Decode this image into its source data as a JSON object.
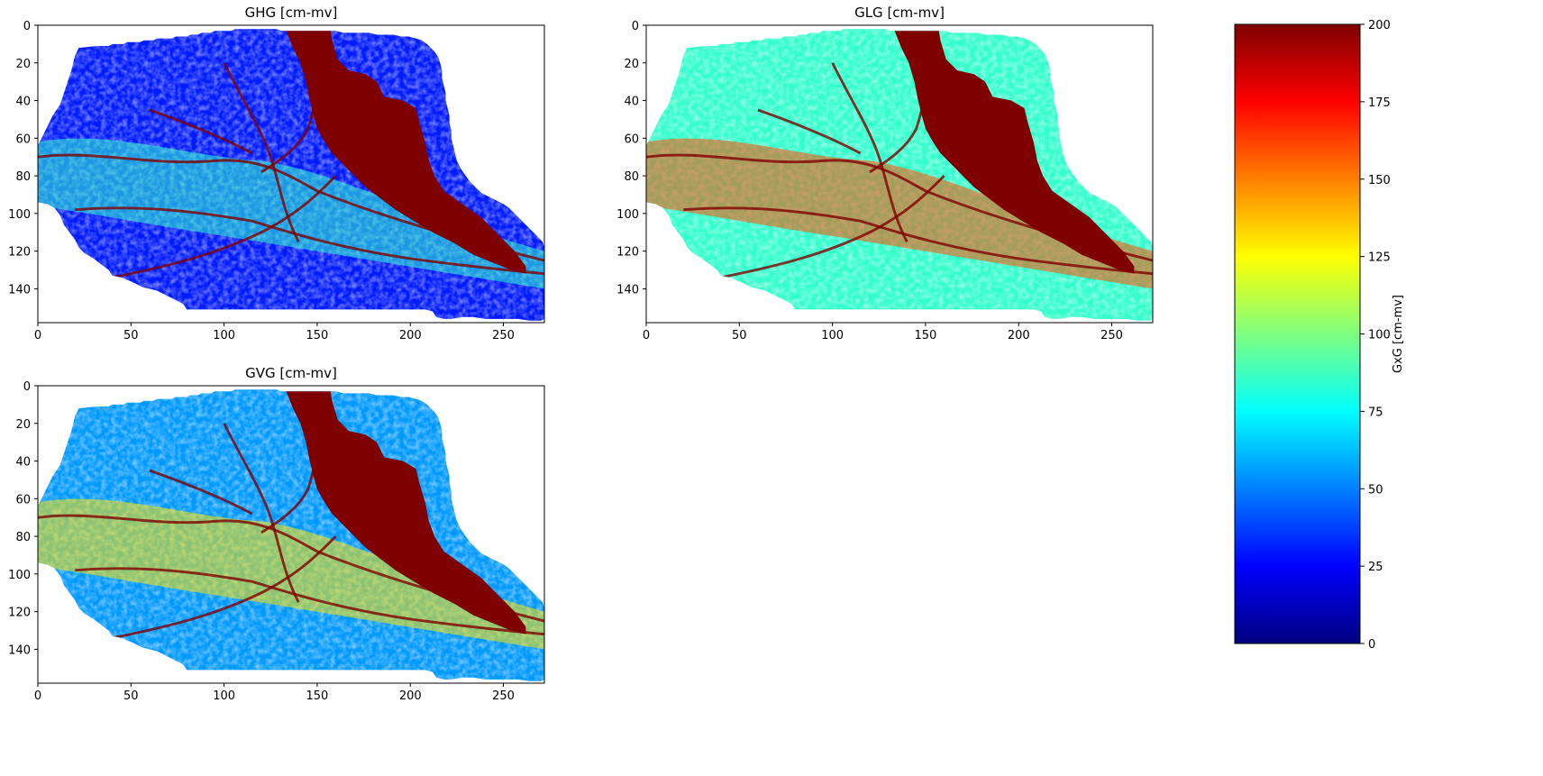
{
  "chart_data": [
    {
      "type": "heatmap",
      "title": "GHG [cm-mv]",
      "xlabel": "",
      "ylabel": "",
      "xlim": [
        0,
        272
      ],
      "ylim": [
        158,
        0
      ],
      "xticks": [
        0,
        50,
        100,
        150,
        200,
        250
      ],
      "yticks": [
        0,
        20,
        40,
        60,
        80,
        100,
        120,
        140
      ],
      "colormap": "jet",
      "vmin": 0,
      "vmax": 200,
      "description_values": {
        "background_level": 30,
        "river_levels": 85,
        "dark_red_region_level": 200
      }
    },
    {
      "type": "heatmap",
      "title": "GLG [cm-mv]",
      "xlabel": "",
      "ylabel": "",
      "xlim": [
        0,
        272
      ],
      "ylim": [
        158,
        0
      ],
      "xticks": [
        0,
        50,
        100,
        150,
        200,
        250
      ],
      "yticks": [
        0,
        20,
        40,
        60,
        80,
        100,
        120,
        140
      ],
      "colormap": "jet",
      "vmin": 0,
      "vmax": 200,
      "description_values": {
        "background_level": 85,
        "river_levels": 160,
        "dark_red_region_level": 200
      }
    },
    {
      "type": "heatmap",
      "title": "GVG [cm-mv]",
      "xlabel": "",
      "ylabel": "",
      "xlim": [
        0,
        272
      ],
      "ylim": [
        158,
        0
      ],
      "xticks": [
        0,
        50,
        100,
        150,
        200,
        250
      ],
      "yticks": [
        0,
        20,
        40,
        60,
        80,
        100,
        120,
        140
      ],
      "colormap": "jet",
      "vmin": 0,
      "vmax": 200,
      "description_values": {
        "background_level": 55,
        "river_levels": 130,
        "dark_red_region_level": 200
      }
    }
  ],
  "colorbar": {
    "label": "GxG [cm-mv]",
    "min": 0,
    "max": 200,
    "ticks": [
      0,
      25,
      50,
      75,
      100,
      125,
      150,
      175,
      200
    ],
    "colors": [
      "#00007f",
      "#0000ff",
      "#007fff",
      "#00ffff",
      "#7fff7f",
      "#ffff00",
      "#ff7f00",
      "#ff0000",
      "#7f0000"
    ]
  }
}
